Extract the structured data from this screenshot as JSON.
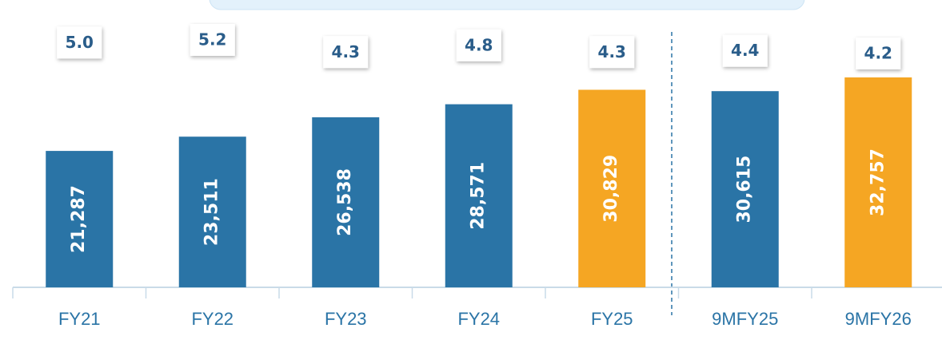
{
  "chart_data": {
    "type": "bar",
    "categories": [
      "FY21",
      "FY22",
      "FY23",
      "FY24",
      "FY25",
      "9MFY25",
      "9MFY26"
    ],
    "values": [
      21287,
      23511,
      26538,
      28571,
      30829,
      30615,
      32757
    ],
    "value_labels": [
      "21,287",
      "23,511",
      "26,538",
      "28,571",
      "30,829",
      "30,615",
      "32,757"
    ],
    "colors": [
      "#2a74a6",
      "#2a74a6",
      "#2a74a6",
      "#2a74a6",
      "#f5a623",
      "#2a74a6",
      "#f5a623"
    ],
    "annotations": {
      "values": [
        5.0,
        5.2,
        4.3,
        4.8,
        4.3,
        4.4,
        4.2
      ],
      "value_labels": [
        "5.0",
        "5.2",
        "4.3",
        "4.8",
        "4.3",
        "4.4",
        "4.2"
      ]
    }
  }
}
